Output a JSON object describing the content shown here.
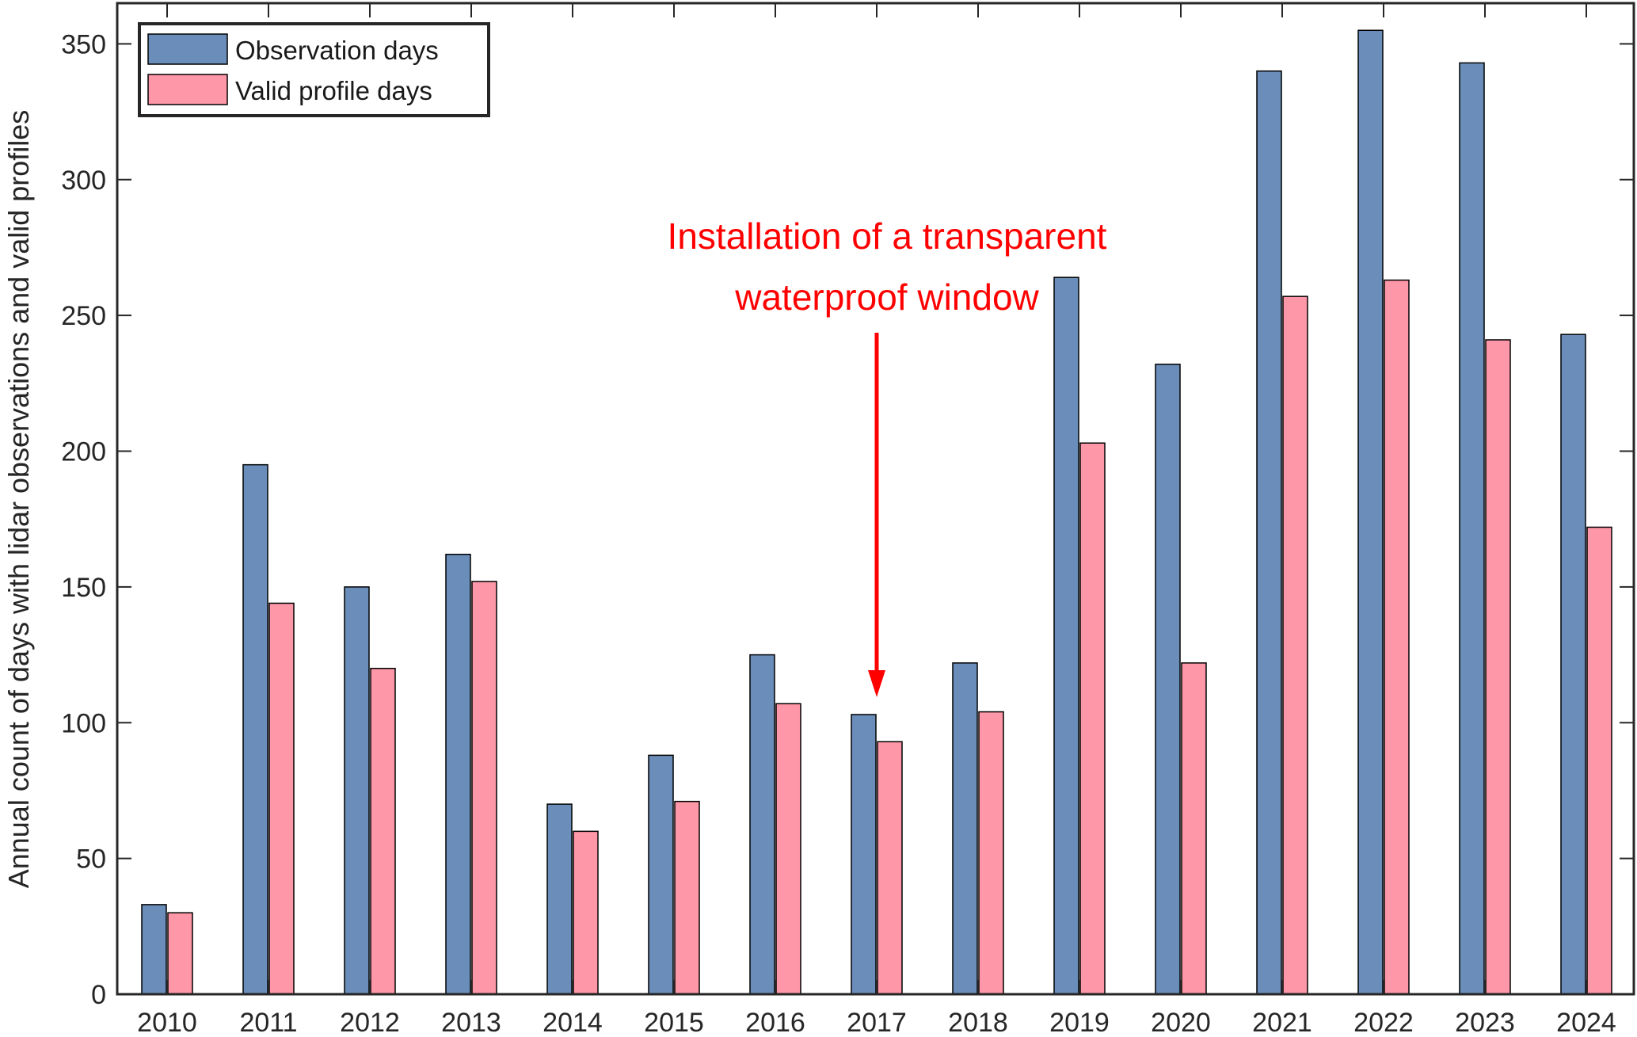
{
  "chart_data": {
    "type": "bar",
    "categories": [
      "2010",
      "2011",
      "2012",
      "2013",
      "2014",
      "2015",
      "2016",
      "2017",
      "2018",
      "2019",
      "2020",
      "2021",
      "2022",
      "2023",
      "2024"
    ],
    "series": [
      {
        "name": "Observation days",
        "color": "#6a8dba",
        "values": [
          33,
          195,
          150,
          162,
          70,
          88,
          125,
          103,
          122,
          264,
          232,
          340,
          355,
          343,
          243
        ]
      },
      {
        "name": "Valid profile days",
        "color": "#fe97a7",
        "values": [
          30,
          144,
          120,
          152,
          60,
          71,
          107,
          93,
          104,
          203,
          122,
          257,
          263,
          241,
          172
        ]
      }
    ],
    "xlabel": "",
    "ylabel": "Annual count of days with lidar observations and valid profiles",
    "ylim": [
      0,
      365
    ],
    "yticks": [
      0,
      50,
      100,
      150,
      200,
      250,
      300,
      350
    ],
    "grid": false,
    "legend": "top-left",
    "annotation": {
      "lines": [
        "Installation of a transparent",
        "waterproof window"
      ],
      "category": "2017",
      "color": "#ff0000"
    }
  }
}
